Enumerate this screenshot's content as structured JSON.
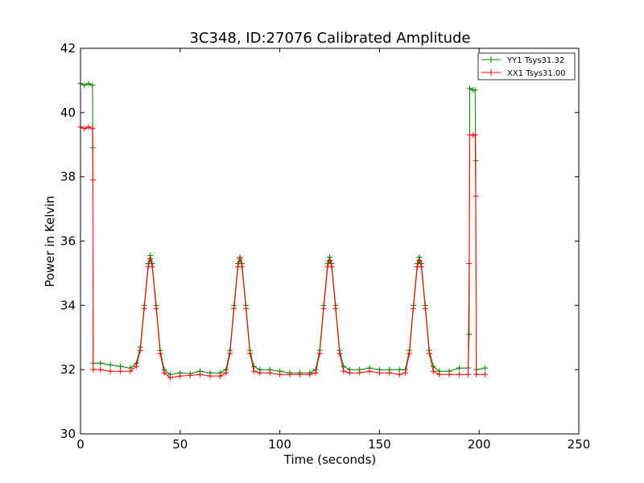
{
  "chart_data": {
    "type": "line",
    "title": "3C348, ID:27076 Calibrated Amplitude",
    "xlabel": "Time (seconds)",
    "ylabel": "Power in Kelvin",
    "xlim": [
      0,
      250
    ],
    "ylim": [
      30,
      42
    ],
    "xticks": [
      0,
      50,
      100,
      150,
      200,
      250
    ],
    "yticks": [
      30,
      32,
      34,
      36,
      38,
      40,
      42
    ],
    "grid": false,
    "legend_position": "top-right",
    "series": [
      {
        "name": "YY1 Tsys31.32",
        "color": "#008000",
        "marker": "+",
        "points": [
          [
            0,
            40.9
          ],
          [
            2,
            40.85
          ],
          [
            4,
            40.9
          ],
          [
            6,
            40.85
          ],
          [
            6.2,
            38.9
          ],
          [
            6.4,
            32.2
          ],
          [
            10,
            32.2
          ],
          [
            15,
            32.15
          ],
          [
            20,
            32.1
          ],
          [
            25,
            32.05
          ],
          [
            28,
            32.2
          ],
          [
            30,
            32.7
          ],
          [
            32,
            34.0
          ],
          [
            34,
            35.3
          ],
          [
            35,
            35.55
          ],
          [
            36,
            35.3
          ],
          [
            38,
            34.0
          ],
          [
            40,
            32.6
          ],
          [
            42,
            32.0
          ],
          [
            45,
            31.85
          ],
          [
            50,
            31.9
          ],
          [
            55,
            31.88
          ],
          [
            60,
            31.95
          ],
          [
            65,
            31.9
          ],
          [
            70,
            31.9
          ],
          [
            73,
            32.0
          ],
          [
            75,
            32.6
          ],
          [
            77,
            34.0
          ],
          [
            79,
            35.3
          ],
          [
            80,
            35.5
          ],
          [
            81,
            35.3
          ],
          [
            83,
            34.0
          ],
          [
            85,
            32.6
          ],
          [
            87,
            32.1
          ],
          [
            90,
            32.0
          ],
          [
            95,
            32.0
          ],
          [
            100,
            31.95
          ],
          [
            105,
            31.9
          ],
          [
            110,
            31.9
          ],
          [
            115,
            31.9
          ],
          [
            118,
            32.0
          ],
          [
            120,
            32.6
          ],
          [
            122,
            34.0
          ],
          [
            124,
            35.3
          ],
          [
            125,
            35.5
          ],
          [
            126,
            35.3
          ],
          [
            128,
            34.0
          ],
          [
            130,
            32.6
          ],
          [
            132,
            32.1
          ],
          [
            135,
            32.0
          ],
          [
            140,
            32.0
          ],
          [
            145,
            32.05
          ],
          [
            150,
            32.0
          ],
          [
            155,
            32.0
          ],
          [
            160,
            32.0
          ],
          [
            163,
            32.0
          ],
          [
            165,
            32.6
          ],
          [
            167,
            34.0
          ],
          [
            169,
            35.3
          ],
          [
            170,
            35.5
          ],
          [
            171,
            35.3
          ],
          [
            173,
            34.0
          ],
          [
            175,
            32.6
          ],
          [
            177,
            32.1
          ],
          [
            180,
            31.95
          ],
          [
            185,
            31.95
          ],
          [
            190,
            32.05
          ],
          [
            194.5,
            32.05
          ],
          [
            195,
            33.1
          ],
          [
            195.3,
            40.75
          ],
          [
            197,
            40.7
          ],
          [
            198,
            40.7
          ],
          [
            198.3,
            38.5
          ],
          [
            198.6,
            32.0
          ],
          [
            203,
            32.05
          ]
        ]
      },
      {
        "name": "XX1 Tsys31.00",
        "color": "#ff0000",
        "marker": "+",
        "points": [
          [
            0,
            39.55
          ],
          [
            2,
            39.5
          ],
          [
            4,
            39.55
          ],
          [
            6,
            39.5
          ],
          [
            6.2,
            37.9
          ],
          [
            6.4,
            32.0
          ],
          [
            10,
            32.0
          ],
          [
            15,
            31.95
          ],
          [
            20,
            31.95
          ],
          [
            25,
            31.95
          ],
          [
            28,
            32.1
          ],
          [
            30,
            32.6
          ],
          [
            32,
            33.9
          ],
          [
            34,
            35.2
          ],
          [
            35,
            35.45
          ],
          [
            36,
            35.2
          ],
          [
            38,
            33.9
          ],
          [
            40,
            32.5
          ],
          [
            42,
            31.9
          ],
          [
            45,
            31.75
          ],
          [
            50,
            31.8
          ],
          [
            55,
            31.82
          ],
          [
            60,
            31.85
          ],
          [
            65,
            31.8
          ],
          [
            70,
            31.8
          ],
          [
            73,
            31.9
          ],
          [
            75,
            32.5
          ],
          [
            77,
            33.9
          ],
          [
            79,
            35.2
          ],
          [
            80,
            35.45
          ],
          [
            81,
            35.2
          ],
          [
            83,
            33.9
          ],
          [
            85,
            32.5
          ],
          [
            87,
            31.95
          ],
          [
            90,
            31.9
          ],
          [
            95,
            31.9
          ],
          [
            100,
            31.85
          ],
          [
            105,
            31.85
          ],
          [
            110,
            31.85
          ],
          [
            115,
            31.85
          ],
          [
            118,
            31.9
          ],
          [
            120,
            32.5
          ],
          [
            122,
            33.9
          ],
          [
            124,
            35.2
          ],
          [
            125,
            35.4
          ],
          [
            126,
            35.2
          ],
          [
            128,
            33.9
          ],
          [
            130,
            32.5
          ],
          [
            132,
            31.95
          ],
          [
            135,
            31.9
          ],
          [
            140,
            31.9
          ],
          [
            145,
            31.95
          ],
          [
            150,
            31.9
          ],
          [
            155,
            31.9
          ],
          [
            160,
            31.85
          ],
          [
            163,
            31.9
          ],
          [
            165,
            32.5
          ],
          [
            167,
            33.9
          ],
          [
            169,
            35.2
          ],
          [
            170,
            35.4
          ],
          [
            171,
            35.2
          ],
          [
            173,
            33.9
          ],
          [
            175,
            32.5
          ],
          [
            177,
            31.95
          ],
          [
            180,
            31.85
          ],
          [
            185,
            31.85
          ],
          [
            190,
            31.85
          ],
          [
            194.5,
            31.85
          ],
          [
            195,
            35.3
          ],
          [
            195.3,
            39.3
          ],
          [
            197,
            39.3
          ],
          [
            198,
            39.3
          ],
          [
            198.3,
            37.4
          ],
          [
            198.6,
            31.85
          ],
          [
            203,
            31.85
          ]
        ]
      }
    ]
  }
}
